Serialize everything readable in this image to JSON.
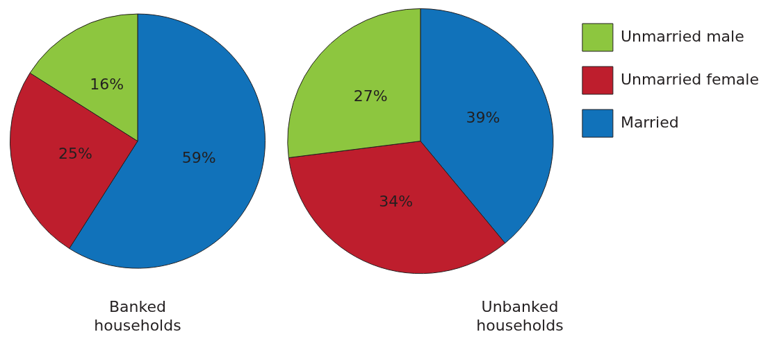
{
  "chart_data": [
    {
      "type": "pie",
      "title": "Banked households",
      "categories": [
        null,
        null,
        null
      ],
      "values": [
        59,
        25,
        16
      ],
      "colors": [
        "#1172ba",
        "#be1e2d",
        "#8dc63f"
      ],
      "value_labels": [
        "59%",
        "25%",
        "16%"
      ],
      "legend": false
    },
    {
      "type": "pie",
      "title": "Unbanked households",
      "categories": [
        "Married",
        "Unmarried female",
        "Unmarried male"
      ],
      "values": [
        39,
        34,
        27
      ],
      "colors": [
        "#1172ba",
        "#be1e2d",
        "#8dc63f"
      ],
      "value_labels": [
        "39%",
        "34%",
        "27%"
      ],
      "legend": "top right"
    }
  ]
}
